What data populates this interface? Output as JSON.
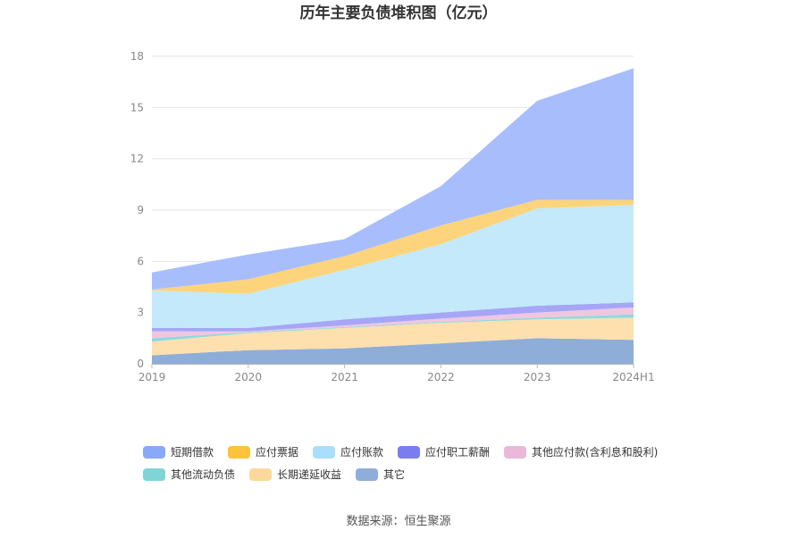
{
  "chart_data": {
    "type": "area",
    "stacked": true,
    "title": "历年主要负债堆积图（亿元）",
    "categories": [
      "2019",
      "2020",
      "2021",
      "2022",
      "2023",
      "2024H1"
    ],
    "ylim": [
      0,
      18
    ],
    "yticks": [
      "0",
      "3",
      "6",
      "9",
      "12",
      "15",
      "18"
    ],
    "grid": true,
    "legend_position": "bottom",
    "series": [
      {
        "name": "其它",
        "color": "#8eaed9",
        "values": [
          0.5,
          0.8,
          0.9,
          1.2,
          1.5,
          1.4
        ]
      },
      {
        "name": "长期递延收益",
        "color": "#fde0ae",
        "values": [
          0.8,
          1.0,
          1.2,
          1.2,
          1.1,
          1.3
        ]
      },
      {
        "name": "其他流动负债",
        "color": "#8fd9dc",
        "values": [
          0.2,
          0.05,
          0.05,
          0.05,
          0.1,
          0.2
        ]
      },
      {
        "name": "其他应付款(含利息和股利)",
        "color": "#efc6e0",
        "values": [
          0.4,
          0.05,
          0.1,
          0.2,
          0.3,
          0.4
        ]
      },
      {
        "name": "应付职工薪酬",
        "color": "#a5a6f6",
        "values": [
          0.2,
          0.2,
          0.35,
          0.35,
          0.4,
          0.3
        ]
      },
      {
        "name": "应付账款",
        "color": "#c3e9fb",
        "values": [
          2.2,
          2.0,
          2.9,
          4.0,
          5.7,
          5.7
        ]
      },
      {
        "name": "应付票据",
        "color": "#fdd47b",
        "values": [
          0.05,
          0.85,
          0.8,
          1.1,
          0.5,
          0.3
        ]
      },
      {
        "name": "短期借款",
        "color": "#a8bdfc",
        "values": [
          1.0,
          1.45,
          1.0,
          2.3,
          5.8,
          7.7
        ]
      }
    ]
  },
  "legend": {
    "row1": [
      {
        "label": "短期借款",
        "color": "#8aa8fa"
      },
      {
        "label": "应付票据",
        "color": "#fcc33b"
      },
      {
        "label": "应付账款",
        "color": "#a9dffa"
      },
      {
        "label": "应付职工薪酬",
        "color": "#7b7cf0"
      },
      {
        "label": "其他应付款(含利息和股利)",
        "color": "#eab9d9"
      }
    ],
    "row2": [
      {
        "label": "其他流动负债",
        "color": "#7fd4d6"
      },
      {
        "label": "长期递延收益",
        "color": "#fcd89c"
      },
      {
        "label": "其它",
        "color": "#8eaed9"
      }
    ]
  },
  "source": "数据来源：恒生聚源"
}
